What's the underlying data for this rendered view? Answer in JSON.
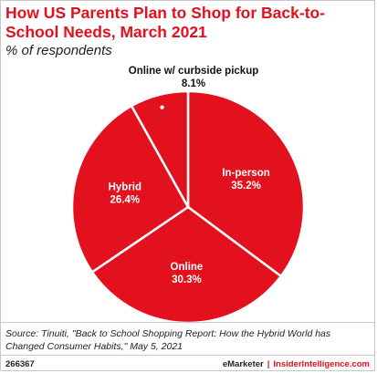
{
  "header": {
    "title": "How US Parents Plan to Shop for Back-to-School Needs, March 2021",
    "subtitle": "% of respondents"
  },
  "chart_data": {
    "type": "pie",
    "title": "How US Parents Plan to Shop for Back-to-School Needs, March 2021",
    "subtitle": "% of respondents",
    "slices": [
      {
        "label": "In-person",
        "value": 35.2,
        "display": "35.2%"
      },
      {
        "label": "Online",
        "value": 30.3,
        "display": "30.3%"
      },
      {
        "label": "Hybrid",
        "value": 26.4,
        "display": "26.4%"
      },
      {
        "label": "Online w/ curbside pickup",
        "value": 8.1,
        "display": "8.1%"
      }
    ],
    "colors": {
      "fill": "#e3101e",
      "stroke": "#ffffff",
      "label": "#ffffff",
      "outside_label": "#111111"
    }
  },
  "footer": {
    "source": "Source: Tinuiti, \"Back to School Shopping Report: How the Hybrid World has Changed Consumer Habits,\" May 5, 2021",
    "id": "266367",
    "brand": "eMarketer",
    "separator": "|",
    "brand2": "InsiderIntelligence.com"
  }
}
